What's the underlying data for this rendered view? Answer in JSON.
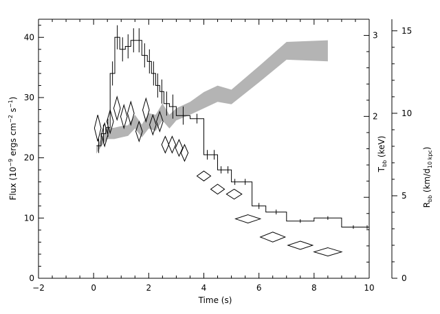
{
  "chart_data": {
    "type": "line",
    "title": "",
    "x": {
      "label": "Time (s)",
      "range": [
        -2,
        10
      ],
      "ticks": [
        -2,
        0,
        2,
        4,
        6,
        8,
        10
      ]
    },
    "y_left": {
      "label_main": "Flux (10",
      "label_exp1": "−9",
      "label_mid": " ergs cm",
      "label_exp2": "−2",
      "label_mid2": " s",
      "label_exp3": "−1",
      "label_end": ")",
      "range": [
        0,
        43
      ],
      "ticks": [
        0,
        10,
        20,
        30,
        40
      ]
    },
    "y_kT": {
      "label_main": "T",
      "label_sub": "bb",
      "label_end": " (keV)",
      "range": [
        0,
        3.2
      ],
      "ticks": [
        2,
        3
      ]
    },
    "y_radius": {
      "label_main": "R",
      "label_sub": "bb",
      "label_mid": " (km/d",
      "label_sub2": "10 kpc",
      "label_end": ")",
      "range": [
        0,
        15.7
      ],
      "ticks": [
        0,
        5,
        10,
        15
      ]
    },
    "flux_histogram": {
      "edges": [
        0.1,
        0.27,
        0.44,
        0.6,
        0.77,
        0.95,
        1.15,
        1.35,
        1.55,
        1.75,
        1.95,
        2.1,
        2.25,
        2.4,
        2.55,
        2.75,
        3.0,
        3.5,
        4.0,
        4.25,
        4.5,
        4.75,
        5.0,
        5.25,
        5.75,
        6.25,
        7.0,
        8.0,
        9.0,
        9.85,
        10.0
      ],
      "values": [
        22,
        24,
        25,
        34,
        40,
        38,
        38.5,
        39.5,
        39.5,
        37,
        36,
        34,
        32,
        31,
        29,
        28.5,
        27,
        26.5,
        20.5,
        20.5,
        18,
        18,
        16,
        16,
        12,
        11,
        9.5,
        10,
        8.5,
        8.5
      ],
      "errors": [
        1.2,
        1.5,
        1.5,
        2,
        2,
        2,
        2,
        2,
        2,
        2,
        2,
        2,
        2,
        2,
        2,
        2,
        1.5,
        0.8,
        0.8,
        0.8,
        0.6,
        0.6,
        0.5,
        0.5,
        0.5,
        0.4,
        0.3,
        0.3,
        0.3,
        0.3
      ]
    },
    "temperature_band": {
      "x": [
        0.1,
        0.3,
        0.5,
        0.75,
        1.0,
        1.25,
        1.5,
        1.75,
        2.0,
        2.25,
        2.5,
        2.75,
        3.0,
        3.5,
        4.0,
        4.5,
        5.0,
        6.0,
        7.0,
        8.5
      ],
      "lower": [
        1.54,
        1.64,
        1.72,
        1.72,
        1.74,
        1.76,
        1.85,
        1.74,
        1.85,
        1.82,
        1.95,
        1.85,
        1.95,
        2.02,
        2.1,
        2.18,
        2.15,
        2.42,
        2.7,
        2.68
      ],
      "upper": [
        1.62,
        1.74,
        1.85,
        1.86,
        1.88,
        1.89,
        2.02,
        1.9,
        2.04,
        2.02,
        2.16,
        2.02,
        2.1,
        2.18,
        2.3,
        2.38,
        2.33,
        2.62,
        2.92,
        2.94
      ]
    },
    "radius_diamonds": [
      {
        "x": 0.15,
        "y": 9.1,
        "dx": 0.12,
        "dy": 0.8
      },
      {
        "x": 0.4,
        "y": 8.7,
        "dx": 0.12,
        "dy": 0.7
      },
      {
        "x": 0.6,
        "y": 9.5,
        "dx": 0.12,
        "dy": 0.7
      },
      {
        "x": 0.85,
        "y": 10.3,
        "dx": 0.12,
        "dy": 0.7
      },
      {
        "x": 1.1,
        "y": 9.8,
        "dx": 0.12,
        "dy": 0.7
      },
      {
        "x": 1.35,
        "y": 10.0,
        "dx": 0.12,
        "dy": 0.7
      },
      {
        "x": 1.65,
        "y": 8.9,
        "dx": 0.12,
        "dy": 0.6
      },
      {
        "x": 1.9,
        "y": 10.2,
        "dx": 0.12,
        "dy": 0.7
      },
      {
        "x": 2.15,
        "y": 9.3,
        "dx": 0.12,
        "dy": 0.6
      },
      {
        "x": 2.4,
        "y": 9.5,
        "dx": 0.12,
        "dy": 0.6
      },
      {
        "x": 2.6,
        "y": 8.1,
        "dx": 0.13,
        "dy": 0.5
      },
      {
        "x": 2.85,
        "y": 8.1,
        "dx": 0.13,
        "dy": 0.5
      },
      {
        "x": 3.1,
        "y": 7.9,
        "dx": 0.13,
        "dy": 0.5
      },
      {
        "x": 3.3,
        "y": 7.6,
        "dx": 0.13,
        "dy": 0.5
      },
      {
        "x": 4.0,
        "y": 6.2,
        "dx": 0.25,
        "dy": 0.3
      },
      {
        "x": 4.5,
        "y": 5.4,
        "dx": 0.25,
        "dy": 0.3
      },
      {
        "x": 5.1,
        "y": 5.1,
        "dx": 0.28,
        "dy": 0.3
      },
      {
        "x": 5.6,
        "y": 3.6,
        "dx": 0.45,
        "dy": 0.25
      },
      {
        "x": 6.5,
        "y": 2.5,
        "dx": 0.45,
        "dy": 0.3
      },
      {
        "x": 7.5,
        "y": 2.0,
        "dx": 0.45,
        "dy": 0.25
      },
      {
        "x": 8.5,
        "y": 1.6,
        "dx": 0.5,
        "dy": 0.25
      }
    ]
  }
}
